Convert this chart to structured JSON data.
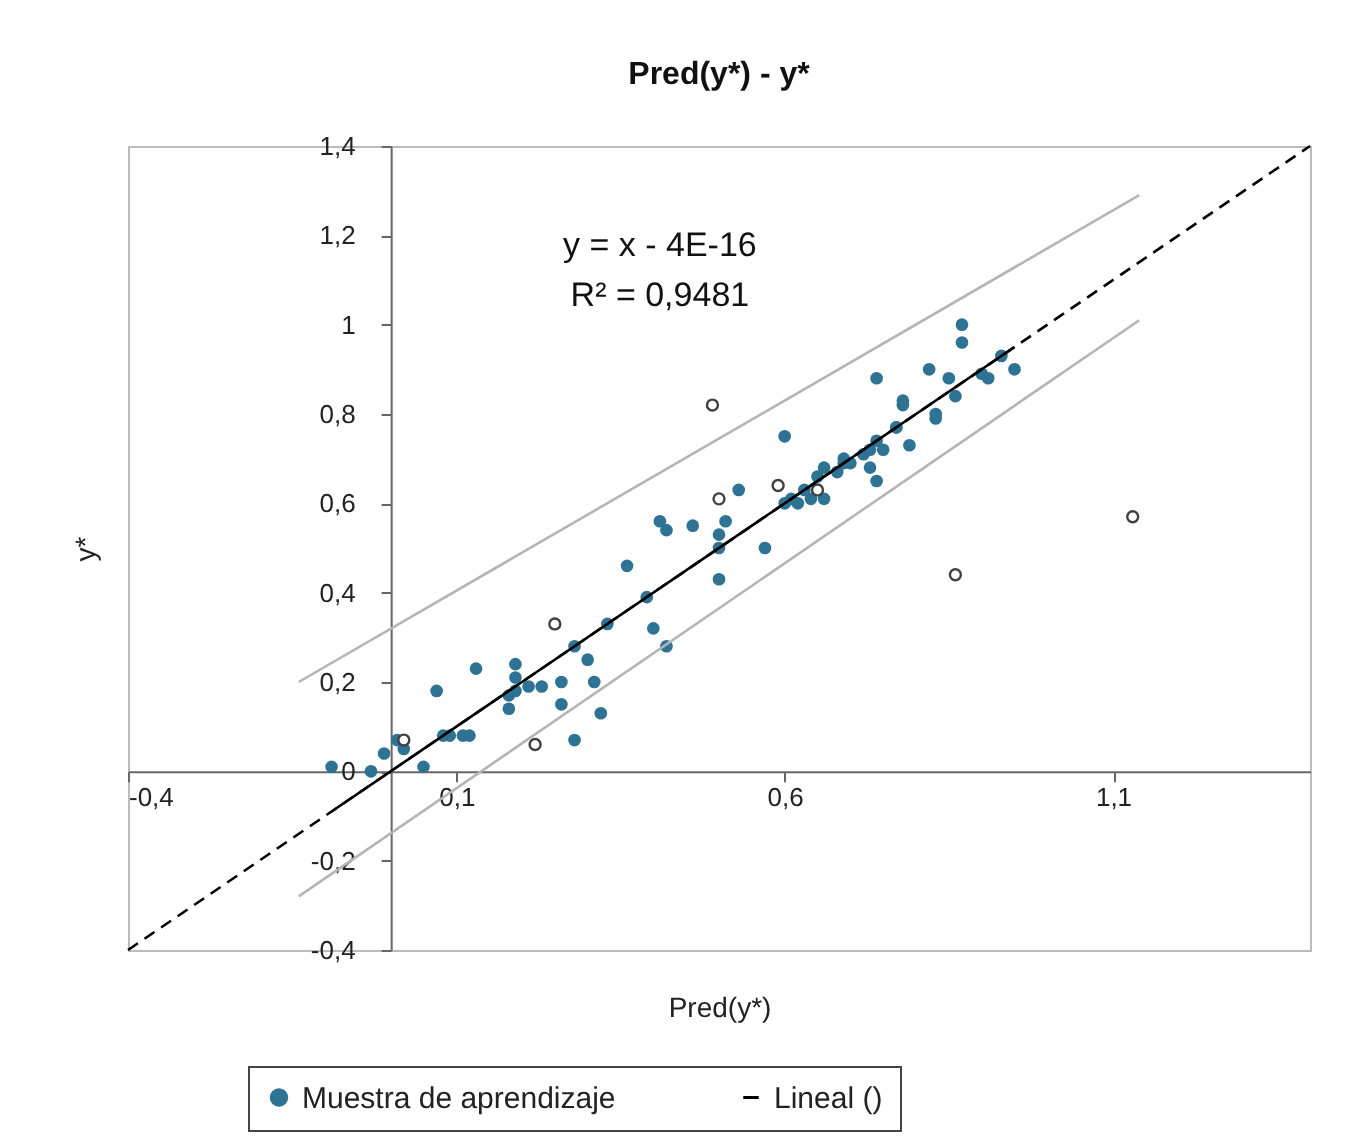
{
  "chart_data": {
    "type": "scatter",
    "title": "Pred(y*) - y*",
    "xlabel": "Pred(y*)",
    "ylabel": "y*",
    "annotations": [
      "y = x - 4E-16",
      "R² = 0,9481"
    ],
    "xlim": [
      -0.4,
      1.4
    ],
    "ylim": [
      -0.4,
      1.4
    ],
    "xticks": [
      {
        "value": -0.4,
        "label": "-0,4"
      },
      {
        "value": 0.1,
        "label": "0,1"
      },
      {
        "value": 0.6,
        "label": "0,6"
      },
      {
        "value": 1.1,
        "label": "1,1"
      }
    ],
    "yticks": [
      {
        "value": -0.4,
        "label": "-0,4"
      },
      {
        "value": -0.2,
        "label": "-0,2"
      },
      0,
      {
        "value": 0.2,
        "label": "0,2"
      },
      {
        "value": 0.4,
        "label": "0,4"
      },
      {
        "value": 0.6,
        "label": "0,6"
      },
      {
        "value": 0.8,
        "label": "0,8"
      },
      1,
      {
        "value": 1.2,
        "label": "1,2"
      },
      {
        "value": 1.4,
        "label": "1,4"
      }
    ],
    "grid": false,
    "legend": "bottom",
    "marker": "circle",
    "series": [
      {
        "name": "Muestra de aprendizaje",
        "type": "scatter",
        "color": "#2e7294",
        "x": [
          -0.09,
          -0.03,
          -0.01,
          0.01,
          0.02,
          0.05,
          0.07,
          0.08,
          0.09,
          0.11,
          0.12,
          0.13,
          0.18,
          0.18,
          0.19,
          0.19,
          0.19,
          0.21,
          0.23,
          0.26,
          0.26,
          0.28,
          0.28,
          0.3,
          0.31,
          0.32,
          0.33,
          0.4,
          0.42,
          0.36,
          0.39,
          0.41,
          0.42,
          0.46,
          0.5,
          0.5,
          0.5,
          0.51,
          0.53,
          0.57,
          0.6,
          0.6,
          0.61,
          0.62,
          0.63,
          0.64,
          0.65,
          0.66,
          0.66,
          0.68,
          0.69,
          0.69,
          0.7,
          0.72,
          0.73,
          0.73,
          0.74,
          0.74,
          0.75,
          0.74,
          0.77,
          0.77,
          0.78,
          0.78,
          0.79,
          0.82,
          0.83,
          0.83,
          0.85,
          0.86,
          0.87,
          0.87,
          0.9,
          0.91,
          0.93,
          0.95
        ],
        "values": [
          0.01,
          0.0,
          0.04,
          0.07,
          0.05,
          0.01,
          0.18,
          0.08,
          0.08,
          0.08,
          0.08,
          0.23,
          0.14,
          0.17,
          0.21,
          0.24,
          0.18,
          0.19,
          0.19,
          0.2,
          0.15,
          0.07,
          0.28,
          0.25,
          0.2,
          0.13,
          0.33,
          0.32,
          0.28,
          0.46,
          0.39,
          0.56,
          0.54,
          0.55,
          0.43,
          0.53,
          0.5,
          0.56,
          0.63,
          0.5,
          0.75,
          0.6,
          0.61,
          0.6,
          0.63,
          0.61,
          0.66,
          0.61,
          0.68,
          0.67,
          0.69,
          0.7,
          0.69,
          0.71,
          0.68,
          0.72,
          0.74,
          0.65,
          0.72,
          0.88,
          0.77,
          0.77,
          0.82,
          0.83,
          0.73,
          0.9,
          0.79,
          0.8,
          0.88,
          0.84,
          0.96,
          1.0,
          0.89,
          0.88,
          0.93,
          0.9
        ]
      },
      {
        "type": "scatter",
        "color": "#404040",
        "x": [
          0.02,
          0.22,
          0.25,
          0.49,
          0.5,
          0.59,
          0.65,
          0.86,
          1.13
        ],
        "values": [
          0.07,
          0.06,
          0.33,
          0.82,
          0.61,
          0.64,
          0.63,
          0.44,
          0.57
        ]
      },
      {
        "name": "Lineal ()",
        "type": "line",
        "color": "#000000",
        "marker": "none",
        "line_style": "solid",
        "x": [
          -0.09,
          0.95
        ],
        "values": [
          -0.09,
          0.95
        ]
      },
      {
        "type": "line",
        "color": "#000000",
        "marker": "none",
        "line_style": "dashed",
        "x": [
          -0.4,
          1.4
        ],
        "values": [
          -0.4,
          1.4
        ]
      },
      {
        "type": "line",
        "color": "#b5b5b5",
        "marker": "none",
        "line_style": "solid",
        "x": [
          -0.14,
          1.14
        ],
        "values": [
          0.2,
          1.29
        ]
      },
      {
        "type": "line",
        "color": "#b5b5b5",
        "marker": "none",
        "line_style": "solid",
        "x": [
          -0.14,
          1.14
        ],
        "values": [
          -0.28,
          1.01
        ]
      }
    ]
  }
}
